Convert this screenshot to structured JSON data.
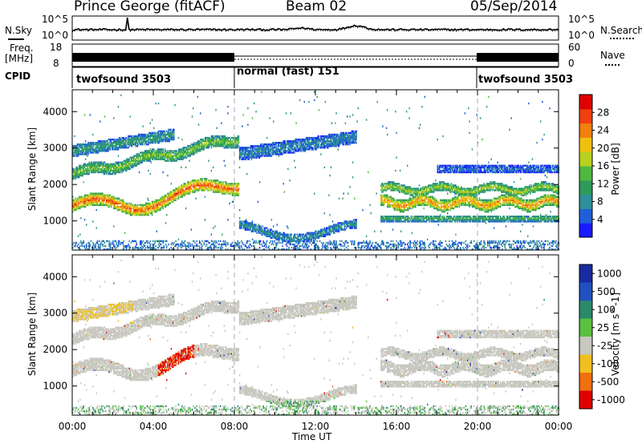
{
  "header": {
    "radar": "Prince George (fitACF)",
    "beam": "Beam 02",
    "date": "05/Sep/2014"
  },
  "sky_panel": {
    "left_label": "N.Sky",
    "right_label": "N.Search",
    "tick_top": "10^5",
    "tick_bottom": "10^0"
  },
  "freq_panel": {
    "left_label_1": "Freq.",
    "left_label_2": "[MHz]",
    "left_tick_top": "18",
    "left_tick_bottom": "8",
    "right_label": "Nave",
    "right_tick_top": "60",
    "right_tick_bottom": "0"
  },
  "cpid": {
    "label": "CPID",
    "segments": [
      {
        "text": "twofsound 3503",
        "start_hour": 0
      },
      {
        "text": "normal (fast) 151",
        "start_hour": 8
      },
      {
        "text": "twofsound 3503",
        "start_hour": 20
      }
    ]
  },
  "chart_data": [
    {
      "type": "heatmap",
      "name": "power",
      "ylabel": "Slant Range [km]",
      "ylim": [
        200,
        4600
      ],
      "yticks": [
        "1000",
        "2000",
        "3000",
        "4000"
      ],
      "colorbar": {
        "label": "Power [dB]",
        "range": [
          0,
          32
        ],
        "ticks": [
          "4",
          "8",
          "12",
          "16",
          "20",
          "24",
          "28"
        ],
        "colors": [
          "#1a1aff",
          "#1f5fd8",
          "#2e8f9a",
          "#2e9b5a",
          "#4fb840",
          "#b8d020",
          "#f0c010",
          "#f08010",
          "#f04010",
          "#e00000"
        ]
      }
    },
    {
      "type": "heatmap",
      "name": "velocity",
      "ylabel": "Slant Range [km]",
      "ylim": [
        200,
        4600
      ],
      "yticks": [
        "1000",
        "2000",
        "3000",
        "4000"
      ],
      "xlabel": "Time UT",
      "xticks": [
        "00:00",
        "04:00",
        "08:00",
        "12:00",
        "16:00",
        "20:00",
        "00:00"
      ],
      "xlim": [
        0,
        24
      ],
      "colorbar": {
        "label": "Velocity [m s^-1]",
        "ticks": [
          "1000",
          "500",
          "100",
          "25",
          "-25",
          "-100",
          "-500",
          "-1000"
        ],
        "colors": [
          "#1a2aa0",
          "#2050c0",
          "#2a8a6a",
          "#5ac040",
          "#c8c8c0",
          "#f0c020",
          "#f07010",
          "#e00000"
        ]
      }
    }
  ]
}
